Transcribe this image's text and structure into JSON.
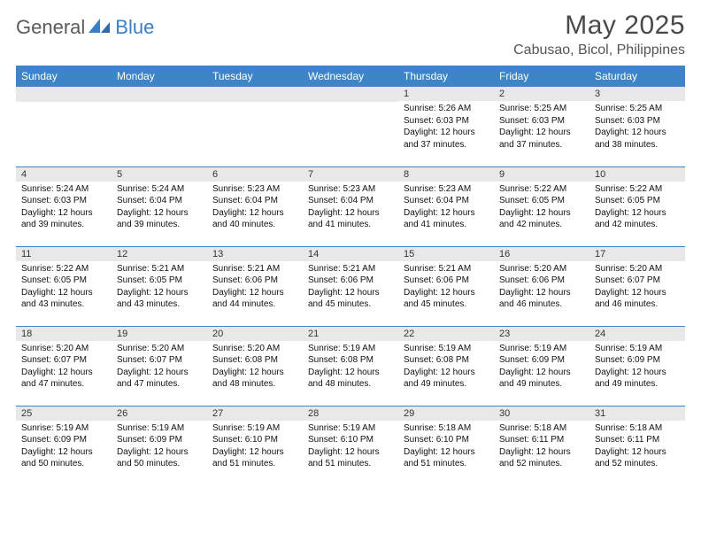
{
  "colors": {
    "header_bg": "#3d85c6",
    "header_text": "#ffffff",
    "daynum_bg": "#e8e8e8",
    "row_divider": "#3d85c6",
    "logo_gray": "#5a5a5a",
    "logo_blue": "#3a7fc4",
    "body_text": "#111111",
    "title_text": "#4a4a4a"
  },
  "logo": {
    "part1": "General",
    "part2": "Blue"
  },
  "title": "May 2025",
  "location": "Cabusao, Bicol, Philippines",
  "weekdays": [
    "Sunday",
    "Monday",
    "Tuesday",
    "Wednesday",
    "Thursday",
    "Friday",
    "Saturday"
  ],
  "layout": {
    "first_weekday_index": 4,
    "days_in_month": 31
  },
  "days": {
    "1": {
      "sunrise": "5:26 AM",
      "sunset": "6:03 PM",
      "daylight": "12 hours and 37 minutes."
    },
    "2": {
      "sunrise": "5:25 AM",
      "sunset": "6:03 PM",
      "daylight": "12 hours and 37 minutes."
    },
    "3": {
      "sunrise": "5:25 AM",
      "sunset": "6:03 PM",
      "daylight": "12 hours and 38 minutes."
    },
    "4": {
      "sunrise": "5:24 AM",
      "sunset": "6:03 PM",
      "daylight": "12 hours and 39 minutes."
    },
    "5": {
      "sunrise": "5:24 AM",
      "sunset": "6:04 PM",
      "daylight": "12 hours and 39 minutes."
    },
    "6": {
      "sunrise": "5:23 AM",
      "sunset": "6:04 PM",
      "daylight": "12 hours and 40 minutes."
    },
    "7": {
      "sunrise": "5:23 AM",
      "sunset": "6:04 PM",
      "daylight": "12 hours and 41 minutes."
    },
    "8": {
      "sunrise": "5:23 AM",
      "sunset": "6:04 PM",
      "daylight": "12 hours and 41 minutes."
    },
    "9": {
      "sunrise": "5:22 AM",
      "sunset": "6:05 PM",
      "daylight": "12 hours and 42 minutes."
    },
    "10": {
      "sunrise": "5:22 AM",
      "sunset": "6:05 PM",
      "daylight": "12 hours and 42 minutes."
    },
    "11": {
      "sunrise": "5:22 AM",
      "sunset": "6:05 PM",
      "daylight": "12 hours and 43 minutes."
    },
    "12": {
      "sunrise": "5:21 AM",
      "sunset": "6:05 PM",
      "daylight": "12 hours and 43 minutes."
    },
    "13": {
      "sunrise": "5:21 AM",
      "sunset": "6:06 PM",
      "daylight": "12 hours and 44 minutes."
    },
    "14": {
      "sunrise": "5:21 AM",
      "sunset": "6:06 PM",
      "daylight": "12 hours and 45 minutes."
    },
    "15": {
      "sunrise": "5:21 AM",
      "sunset": "6:06 PM",
      "daylight": "12 hours and 45 minutes."
    },
    "16": {
      "sunrise": "5:20 AM",
      "sunset": "6:06 PM",
      "daylight": "12 hours and 46 minutes."
    },
    "17": {
      "sunrise": "5:20 AM",
      "sunset": "6:07 PM",
      "daylight": "12 hours and 46 minutes."
    },
    "18": {
      "sunrise": "5:20 AM",
      "sunset": "6:07 PM",
      "daylight": "12 hours and 47 minutes."
    },
    "19": {
      "sunrise": "5:20 AM",
      "sunset": "6:07 PM",
      "daylight": "12 hours and 47 minutes."
    },
    "20": {
      "sunrise": "5:20 AM",
      "sunset": "6:08 PM",
      "daylight": "12 hours and 48 minutes."
    },
    "21": {
      "sunrise": "5:19 AM",
      "sunset": "6:08 PM",
      "daylight": "12 hours and 48 minutes."
    },
    "22": {
      "sunrise": "5:19 AM",
      "sunset": "6:08 PM",
      "daylight": "12 hours and 49 minutes."
    },
    "23": {
      "sunrise": "5:19 AM",
      "sunset": "6:09 PM",
      "daylight": "12 hours and 49 minutes."
    },
    "24": {
      "sunrise": "5:19 AM",
      "sunset": "6:09 PM",
      "daylight": "12 hours and 49 minutes."
    },
    "25": {
      "sunrise": "5:19 AM",
      "sunset": "6:09 PM",
      "daylight": "12 hours and 50 minutes."
    },
    "26": {
      "sunrise": "5:19 AM",
      "sunset": "6:09 PM",
      "daylight": "12 hours and 50 minutes."
    },
    "27": {
      "sunrise": "5:19 AM",
      "sunset": "6:10 PM",
      "daylight": "12 hours and 51 minutes."
    },
    "28": {
      "sunrise": "5:19 AM",
      "sunset": "6:10 PM",
      "daylight": "12 hours and 51 minutes."
    },
    "29": {
      "sunrise": "5:18 AM",
      "sunset": "6:10 PM",
      "daylight": "12 hours and 51 minutes."
    },
    "30": {
      "sunrise": "5:18 AM",
      "sunset": "6:11 PM",
      "daylight": "12 hours and 52 minutes."
    },
    "31": {
      "sunrise": "5:18 AM",
      "sunset": "6:11 PM",
      "daylight": "12 hours and 52 minutes."
    }
  },
  "labels": {
    "sunrise": "Sunrise:",
    "sunset": "Sunset:",
    "daylight": "Daylight:"
  }
}
